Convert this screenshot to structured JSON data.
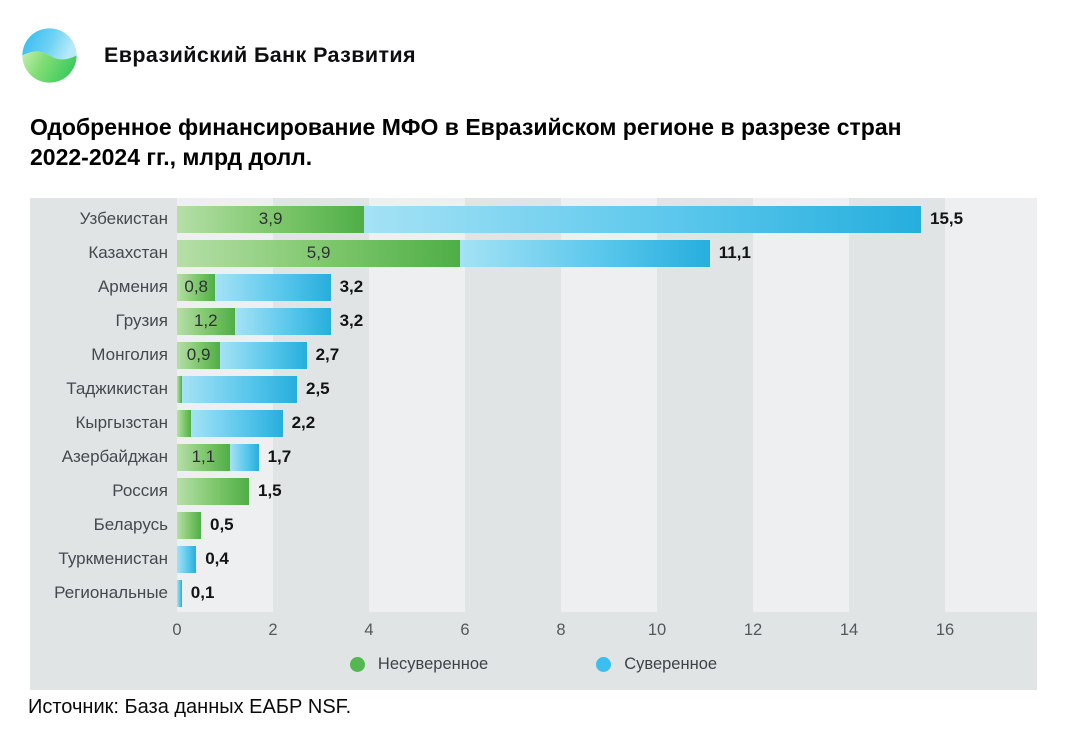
{
  "brand": {
    "name": "Евразийский Банк Развития"
  },
  "title": {
    "line1": "Одобренное финансирование МФО в Евразийском регионе в разрезе стран",
    "line2": "2022-2024 гг., млрд долл."
  },
  "source": {
    "text": "Источник: База данных ЕАБР NSF."
  },
  "colors": {
    "green_gradient_start": "#b6dfa8",
    "green_gradient_end": "#4fae46",
    "blue_gradient_start": "#a5e2f5",
    "blue_gradient_end": "#26aedd",
    "legend_green": "#53b84f",
    "legend_blue": "#3bbff0",
    "chart_bg": "#e1e4e5",
    "band_light": "#edeff0",
    "logo_blue": "#35bdf1",
    "logo_green": "#45cf63"
  },
  "chart_data": {
    "type": "bar",
    "orientation": "horizontal",
    "title": "Одобренное финансирование МФО в Евразийском регионе в разрезе стран 2022-2024 гг., млрд долл.",
    "unit": "млрд долл.",
    "xlim": [
      0,
      17.9
    ],
    "x_ticks": [
      0,
      2,
      4,
      6,
      8,
      10,
      12,
      14,
      16
    ],
    "grid": "alternating-vertical-bands",
    "legend_position": "bottom-center",
    "legend": [
      {
        "label": "Несуверенное",
        "color": "#53b84f"
      },
      {
        "label": "Суверенное",
        "color": "#3bbff0"
      }
    ],
    "series_names": [
      "Несуверенное",
      "Суверенное"
    ],
    "rows": [
      {
        "country": "Узбекистан",
        "nonsovereign": 3.9,
        "sovereign": 11.6,
        "total": 15.5,
        "nonsovereign_label": "3,9",
        "total_label": "15,5"
      },
      {
        "country": "Казахстан",
        "nonsovereign": 5.9,
        "sovereign": 5.2,
        "total": 11.1,
        "nonsovereign_label": "5,9",
        "total_label": "11,1"
      },
      {
        "country": "Армения",
        "nonsovereign": 0.8,
        "sovereign": 2.4,
        "total": 3.2,
        "nonsovereign_label": "0,8",
        "total_label": "3,2"
      },
      {
        "country": "Грузия",
        "nonsovereign": 1.2,
        "sovereign": 2.0,
        "total": 3.2,
        "nonsovereign_label": "1,2",
        "total_label": "3,2"
      },
      {
        "country": "Монголия",
        "nonsovereign": 0.9,
        "sovereign": 1.8,
        "total": 2.7,
        "nonsovereign_label": "0,9",
        "total_label": "2,7"
      },
      {
        "country": "Таджикистан",
        "nonsovereign": 0.1,
        "sovereign": 2.4,
        "total": 2.5,
        "nonsovereign_label": "",
        "total_label": "2,5"
      },
      {
        "country": "Кыргызстан",
        "nonsovereign": 0.3,
        "sovereign": 1.9,
        "total": 2.2,
        "nonsovereign_label": "",
        "total_label": "2,2"
      },
      {
        "country": "Азербайджан",
        "nonsovereign": 1.1,
        "sovereign": 0.6,
        "total": 1.7,
        "nonsovereign_label": "1,1",
        "total_label": "1,7"
      },
      {
        "country": "Россия",
        "nonsovereign": 1.5,
        "sovereign": 0,
        "total": 1.5,
        "nonsovereign_label": "",
        "total_label": "1,5"
      },
      {
        "country": "Беларусь",
        "nonsovereign": 0.5,
        "sovereign": 0,
        "total": 0.5,
        "nonsovereign_label": "",
        "total_label": "0,5"
      },
      {
        "country": "Туркменистан",
        "nonsovereign": 0,
        "sovereign": 0.4,
        "total": 0.4,
        "nonsovereign_label": "",
        "total_label": "0,4"
      },
      {
        "country": "Региональные",
        "nonsovereign": 0,
        "sovereign": 0.1,
        "total": 0.1,
        "nonsovereign_label": "",
        "total_label": "0,1"
      }
    ]
  }
}
